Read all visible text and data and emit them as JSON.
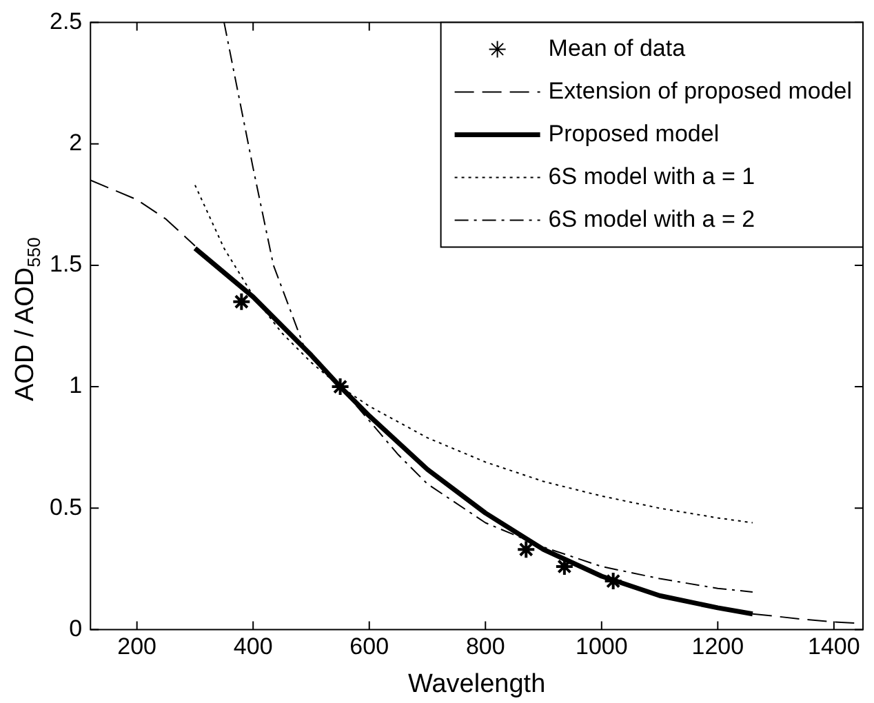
{
  "chart_data": {
    "type": "line",
    "xlabel": "Wavelength",
    "ylabel": "AOD / AOD$_{550}$",
    "xlim": [
      120,
      1450
    ],
    "xticks": [
      200,
      400,
      600,
      800,
      1000,
      1200,
      1400
    ],
    "ylim": [
      0,
      2.5
    ],
    "yticks": [
      0,
      0.5,
      1,
      1.5,
      2,
      2.5
    ],
    "grid": false,
    "legend": "top right",
    "series": [
      {
        "name": "Mean of data",
        "type": "scatter",
        "marker": "cross",
        "color": "#000000",
        "x": [
          380,
          550,
          870,
          936,
          1020
        ],
        "values": [
          1.35,
          1.0,
          0.33,
          0.26,
          0.2
        ]
      },
      {
        "name": "Extension of proposed model",
        "type": "line",
        "line_style": "dashed",
        "marker": "none",
        "color": "#000000",
        "x": [
          120,
          150,
          200,
          250,
          300,
          800,
          1260,
          1300,
          1350,
          1400,
          1450
        ],
        "values": [
          1.85,
          1.82,
          1.77,
          1.69,
          1.58,
          null,
          0.065,
          0.055,
          0.042,
          0.032,
          0.025
        ]
      },
      {
        "name": "Proposed model",
        "type": "line",
        "line_style": "solid",
        "marker": "none",
        "color": "#000000",
        "x": [
          300,
          400,
          500,
          550,
          600,
          700,
          800,
          900,
          1000,
          1100,
          1200,
          1260
        ],
        "values": [
          1.57,
          1.37,
          1.13,
          1.0,
          0.88,
          0.66,
          0.48,
          0.33,
          0.22,
          0.14,
          0.09,
          0.065
        ]
      },
      {
        "name": "6S model with a = 1",
        "type": "line",
        "line_style": "dotted",
        "marker": "none",
        "color": "#000000",
        "x": [
          300,
          350,
          400,
          450,
          500,
          550,
          600,
          700,
          800,
          900,
          1000,
          1100,
          1200,
          1260
        ],
        "values": [
          1.83,
          1.57,
          1.375,
          1.22,
          1.1,
          1.0,
          0.92,
          0.79,
          0.69,
          0.61,
          0.55,
          0.5,
          0.46,
          0.44
        ]
      },
      {
        "name": "6S model with a = 2",
        "type": "line",
        "line_style": "dashdot",
        "marker": "none",
        "color": "#000000",
        "x": [
          350,
          400,
          435,
          490,
          550,
          600,
          650,
          700,
          800,
          900,
          1000,
          1100,
          1200,
          1260
        ],
        "values": [
          2.5,
          1.9,
          1.5,
          1.15,
          1.0,
          0.86,
          0.72,
          0.6,
          0.44,
          0.34,
          0.26,
          0.21,
          0.17,
          0.155
        ]
      }
    ]
  }
}
